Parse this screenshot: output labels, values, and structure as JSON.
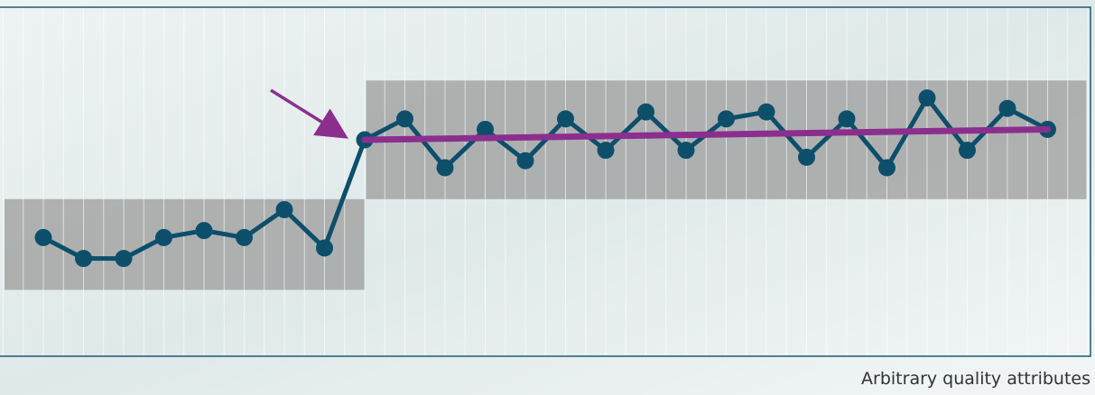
{
  "chart_data": {
    "type": "line",
    "caption": "Arbitrary quality attributes",
    "categories": [
      null,
      null,
      null,
      null,
      null,
      null,
      null,
      null,
      null,
      null,
      null,
      null,
      null,
      null,
      null,
      null,
      null,
      null,
      null,
      null,
      null,
      null,
      null,
      null,
      null,
      null
    ],
    "values": [
      34,
      28,
      28,
      34,
      36,
      34,
      42,
      31,
      62,
      68,
      54,
      65,
      56,
      68,
      59,
      70,
      59,
      68,
      70,
      57,
      68,
      54,
      74,
      59,
      71,
      65
    ],
    "color": "#0d4f6b",
    "ylim": [
      0,
      100
    ],
    "bands": [
      {
        "start": -1,
        "end": 8,
        "low": 19,
        "high": 45
      },
      {
        "start": 8,
        "end": 26,
        "low": 45,
        "high": 79
      }
    ],
    "band_color": "#9c9c9c",
    "trend": {
      "start": 8,
      "end": 25,
      "values": [
        62,
        65
      ],
      "color": "#8b2f8f"
    }
  }
}
